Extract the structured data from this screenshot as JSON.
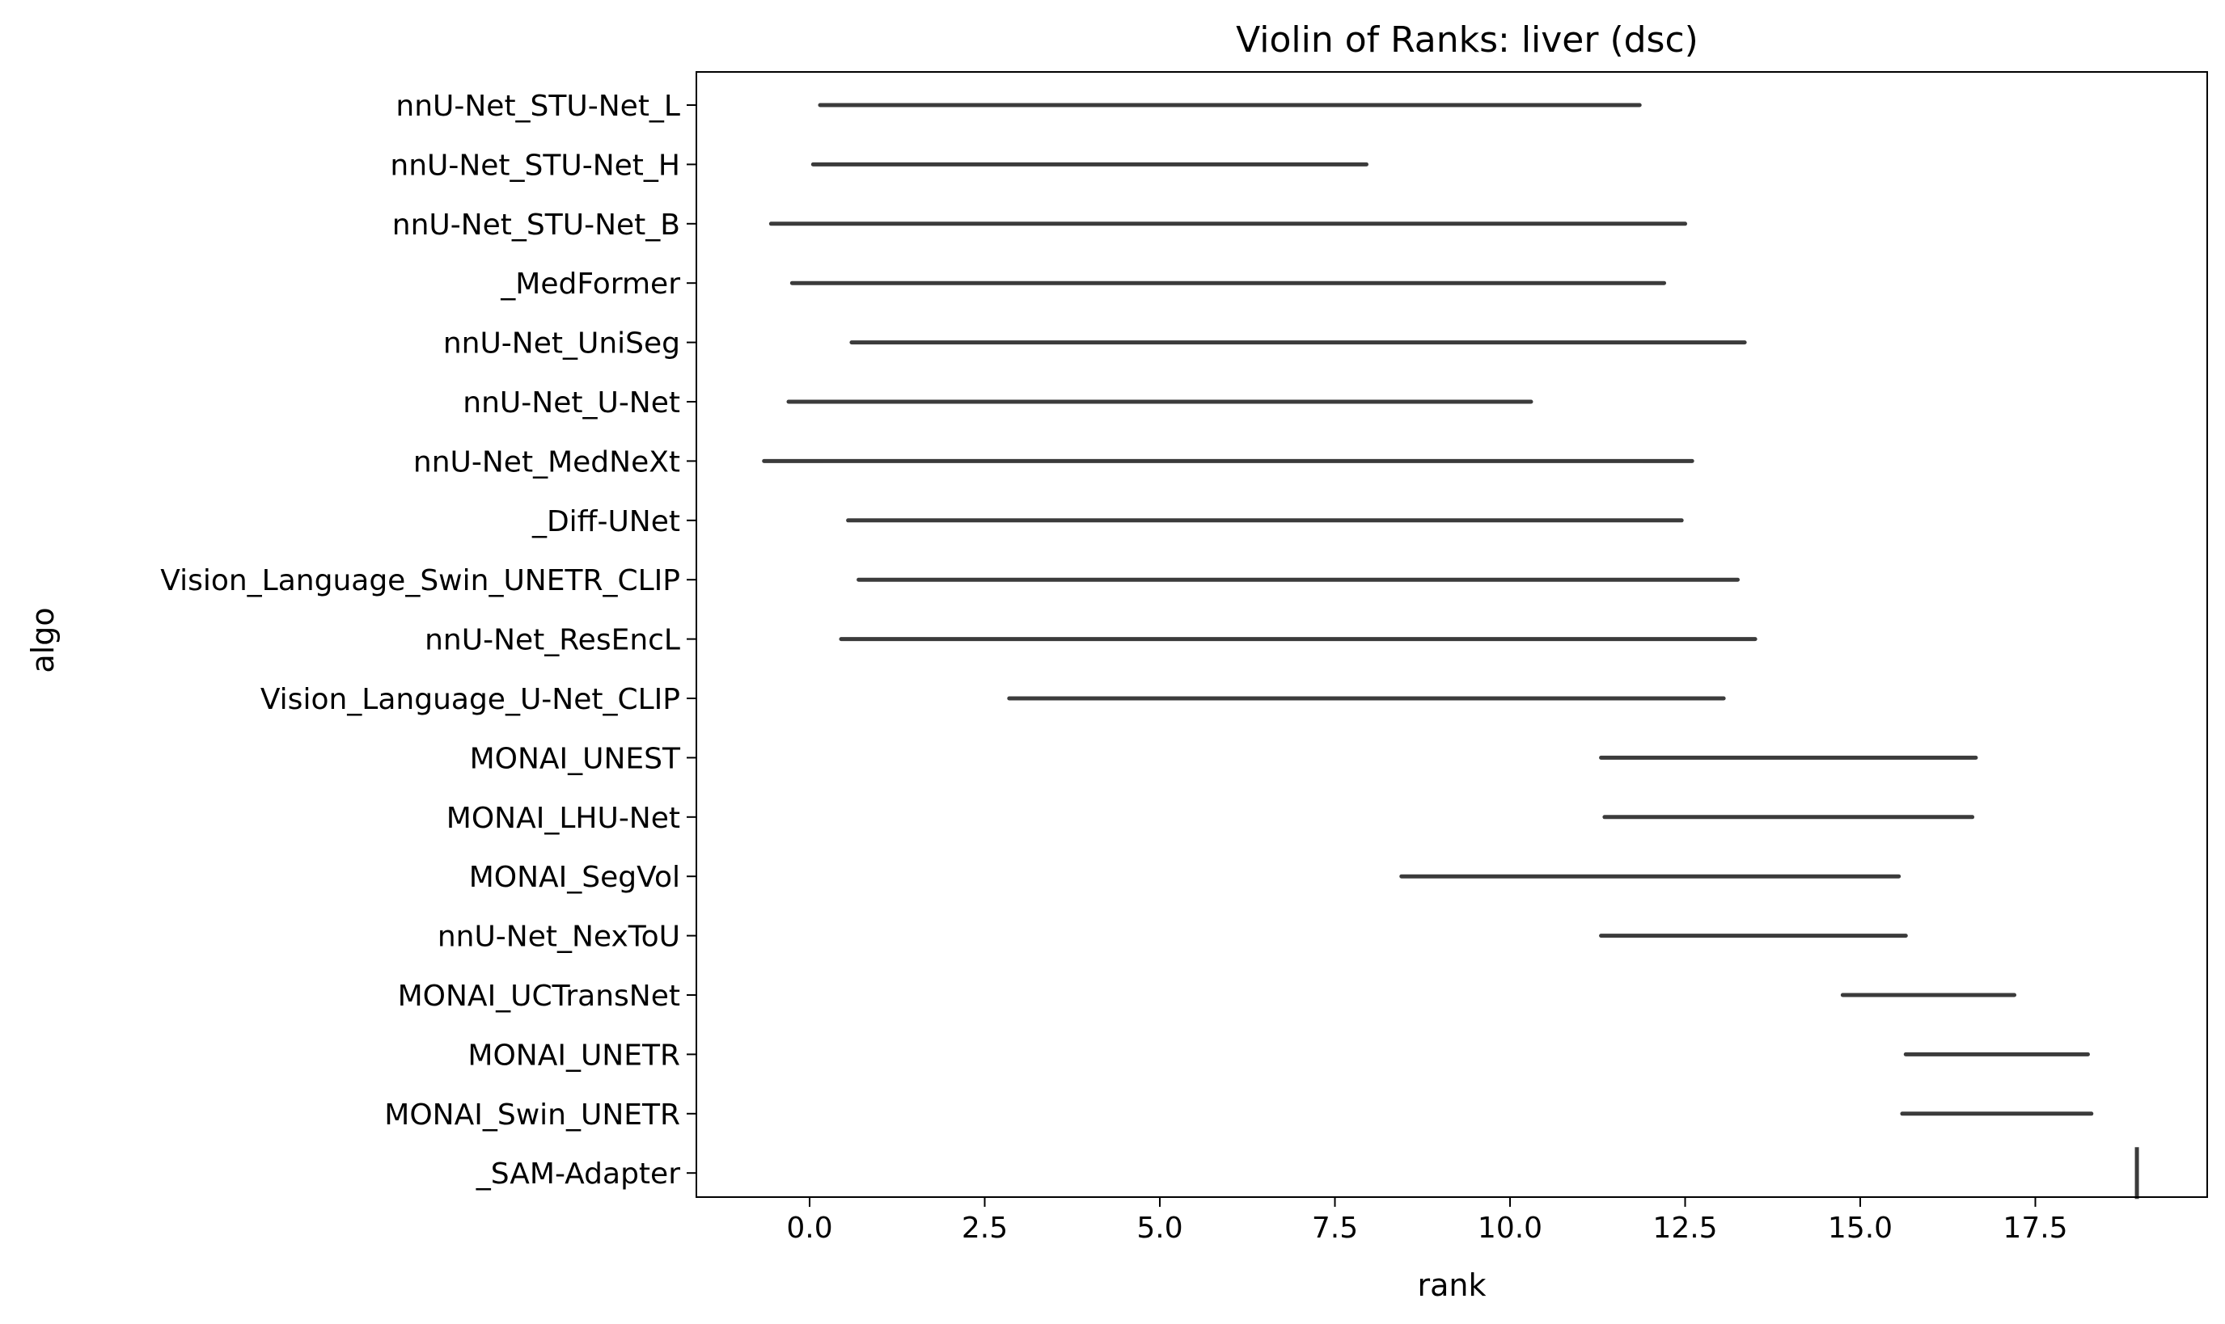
{
  "chart_data": {
    "type": "violin",
    "title": "Violin of Ranks: liver (dsc)",
    "xlabel": "rank",
    "ylabel": "algo",
    "xlim": [
      -1.6,
      19.9
    ],
    "xticks": [
      0.0,
      2.5,
      5.0,
      7.5,
      10.0,
      12.5,
      15.0,
      17.5
    ],
    "xtick_labels": [
      "0.0",
      "2.5",
      "5.0",
      "7.5",
      "10.0",
      "12.5",
      "15.0",
      "17.5"
    ],
    "grid": false,
    "legend": "none",
    "line_color": "#3b3b3b",
    "categories": [
      "nnU-Net_STU-Net_L",
      "nnU-Net_STU-Net_H",
      "nnU-Net_STU-Net_B",
      "_MedFormer",
      "nnU-Net_UniSeg",
      "nnU-Net_U-Net",
      "nnU-Net_MedNeXt",
      "_Diff-UNet",
      "Vision_Language_Swin_UNETR_CLIP",
      "nnU-Net_ResEncL",
      "Vision_Language_U-Net_CLIP",
      "MONAI_UNEST",
      "MONAI_LHU-Net",
      "MONAI_SegVol",
      "nnU-Net_NexToU",
      "MONAI_UCTransNet",
      "MONAI_UNETR",
      "MONAI_Swin_UNETR",
      "_SAM-Adapter"
    ],
    "ranges": [
      [
        0.15,
        11.85
      ],
      [
        0.05,
        7.95
      ],
      [
        -0.55,
        12.5
      ],
      [
        -0.25,
        12.2
      ],
      [
        0.6,
        13.35
      ],
      [
        -0.3,
        10.3
      ],
      [
        -0.65,
        12.6
      ],
      [
        0.55,
        12.45
      ],
      [
        0.7,
        13.25
      ],
      [
        0.45,
        13.5
      ],
      [
        2.85,
        13.05
      ],
      [
        11.3,
        16.65
      ],
      [
        11.35,
        16.6
      ],
      [
        8.45,
        15.55
      ],
      [
        11.3,
        15.65
      ],
      [
        14.75,
        17.2
      ],
      [
        15.65,
        18.25
      ],
      [
        15.6,
        18.3
      ],
      [
        18.95,
        18.95
      ]
    ]
  }
}
